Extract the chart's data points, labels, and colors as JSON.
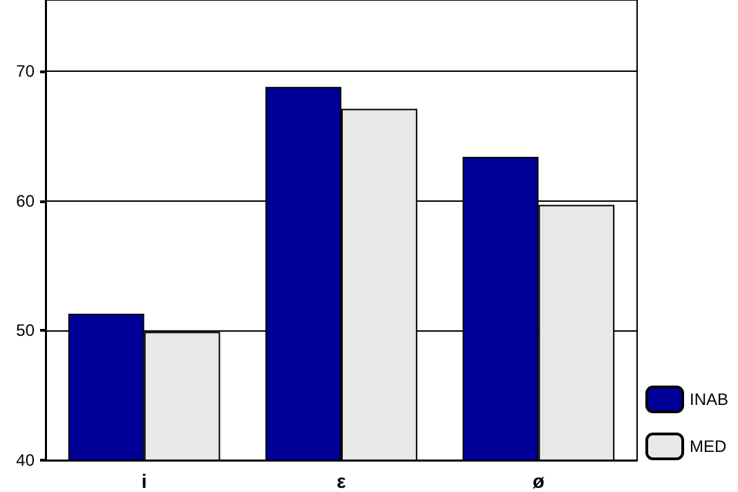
{
  "chart_data": {
    "type": "bar",
    "categories": [
      "i",
      "ε",
      "ø"
    ],
    "series": [
      {
        "name": "INAB",
        "color": "#000099",
        "values": [
          51.3,
          68.8,
          63.4
        ]
      },
      {
        "name": "MED",
        "color": "#e8e8e8",
        "values": [
          49.9,
          67.1,
          59.7
        ]
      }
    ],
    "ylim": [
      40,
      75.5
    ],
    "yticks": [
      40,
      50,
      60,
      70
    ],
    "grid": "y",
    "legend": "bottom right"
  }
}
